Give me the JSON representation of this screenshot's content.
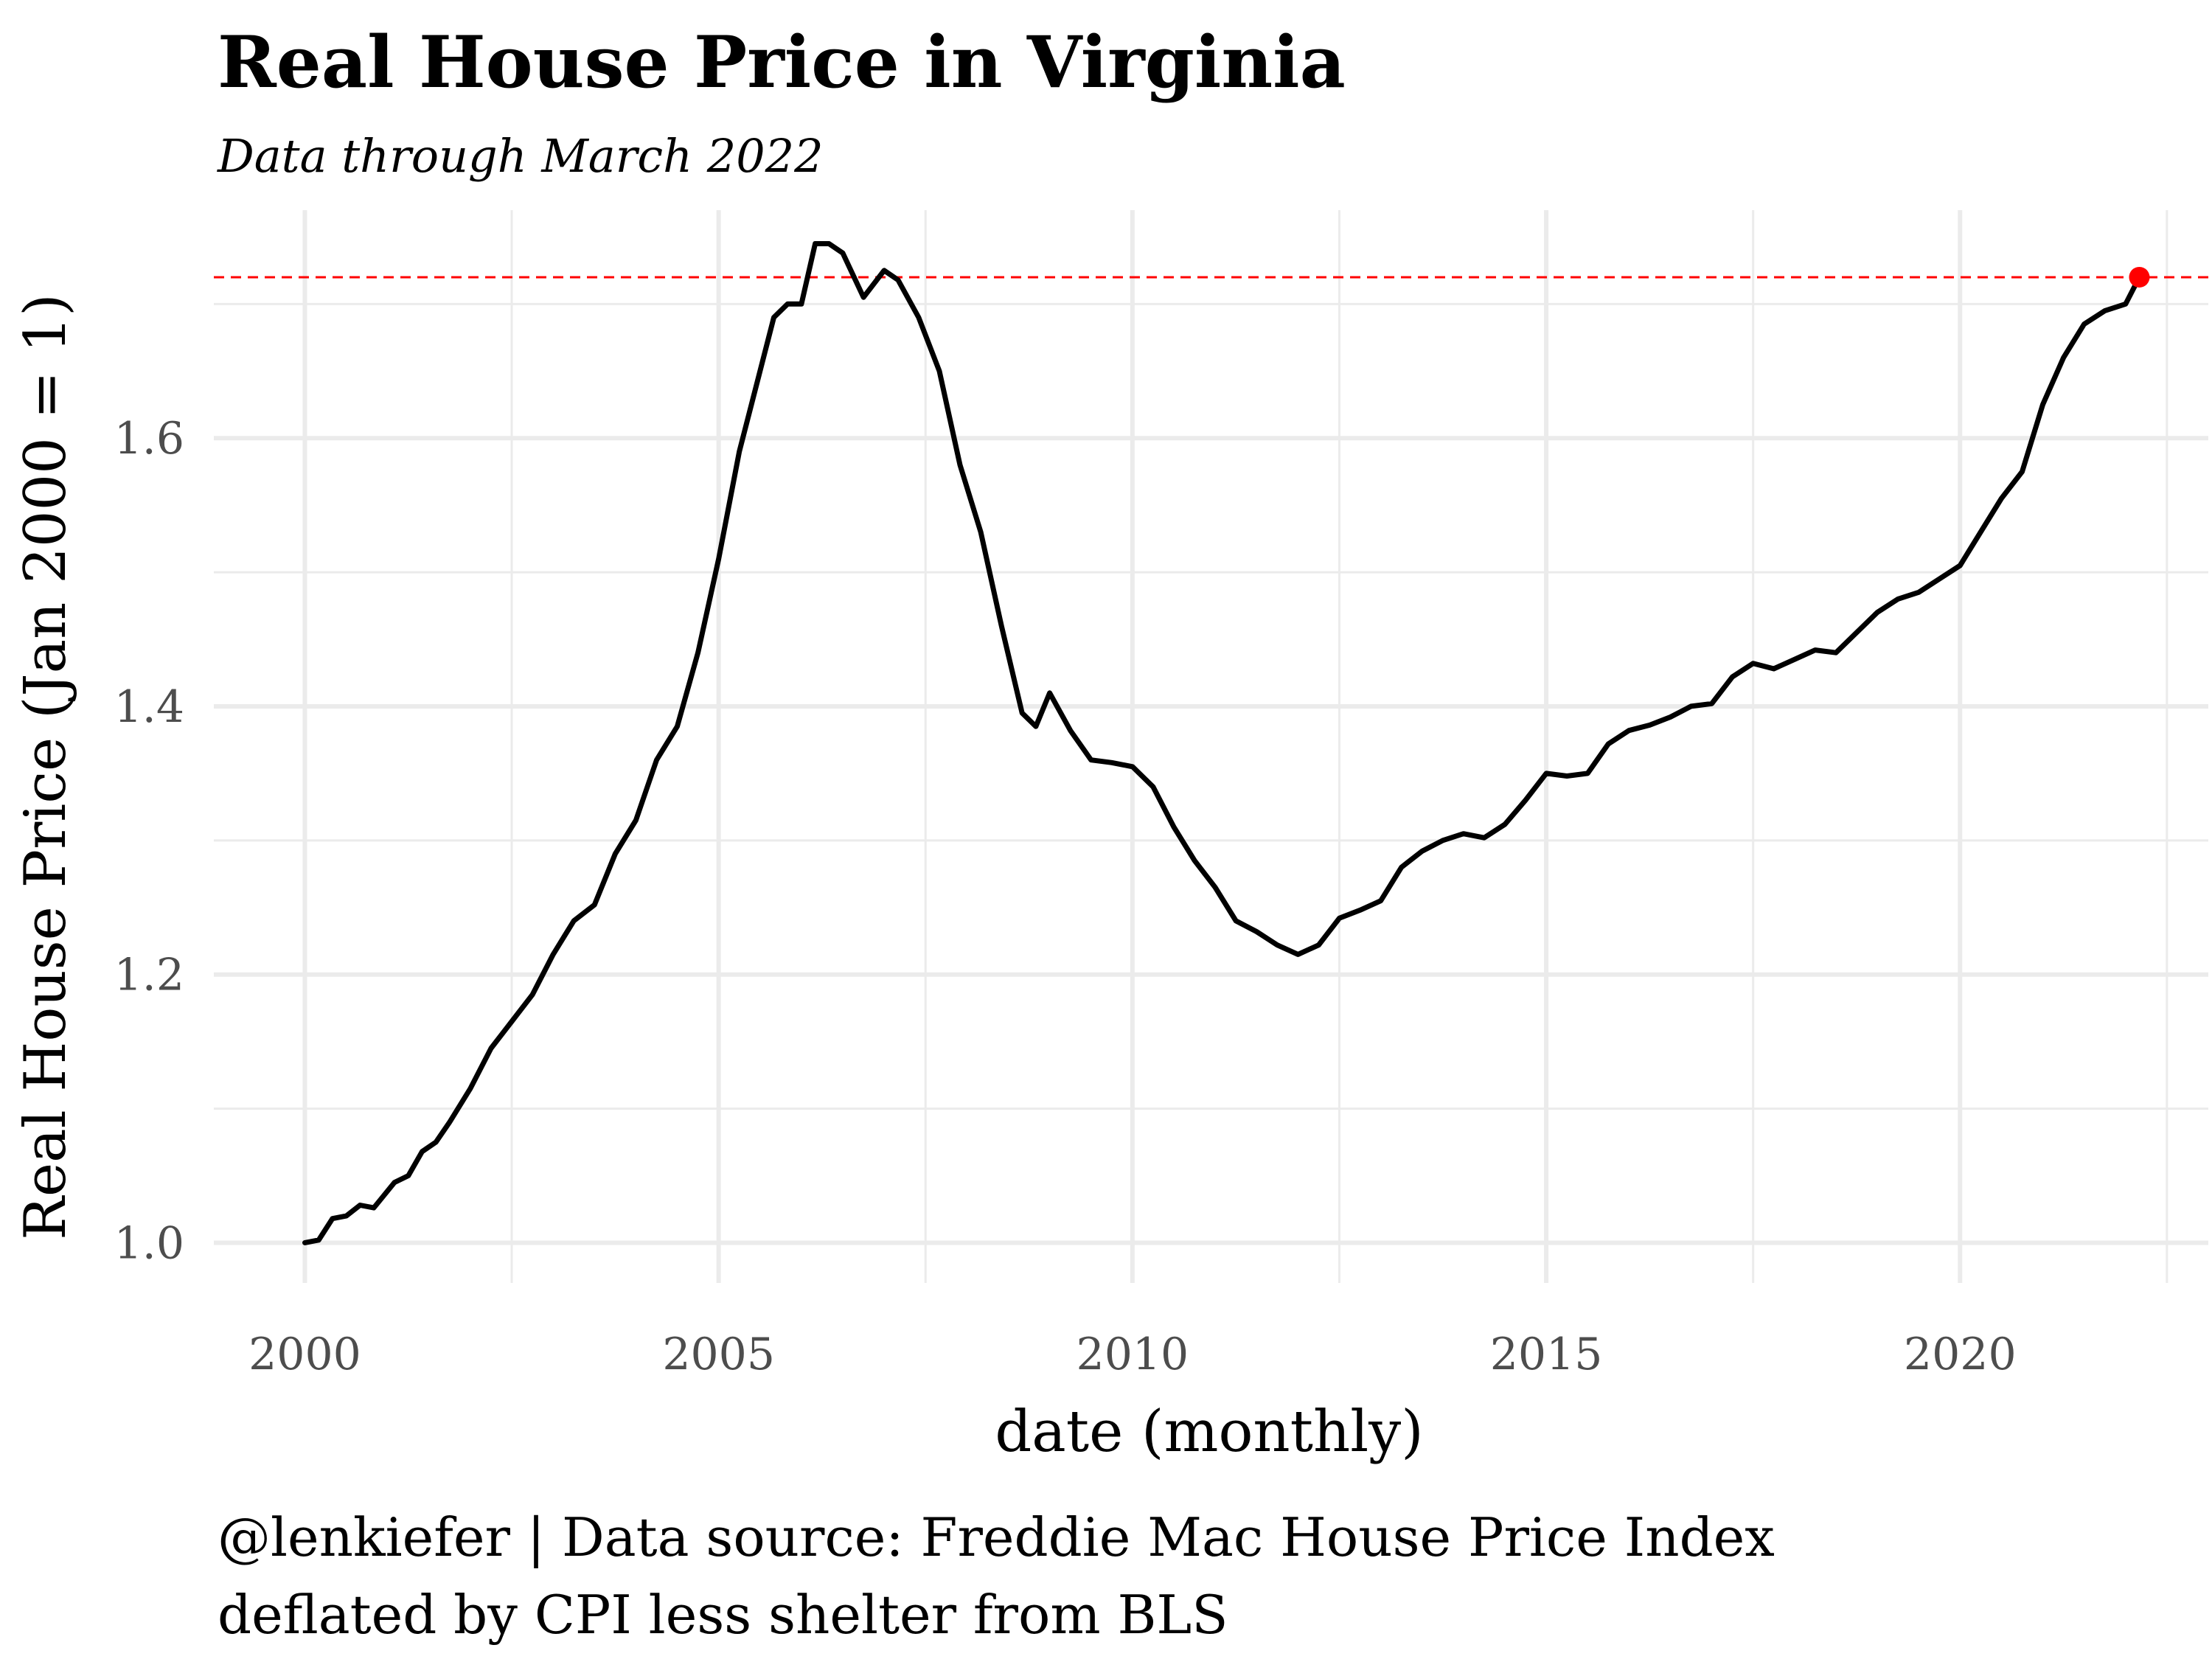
{
  "chart_data": {
    "type": "line",
    "title": "Real House Price in Virginia",
    "subtitle": "Data through March 2022",
    "xlabel": "date (monthly)",
    "ylabel": "Real House Price (Jan 2000 = 1)",
    "caption_lines": [
      "@lenkiefer | Data source: Freddie Mac House Price Index",
      "deflated by CPI less shelter from BLS"
    ],
    "x_ticks": [
      "2000",
      "2005",
      "2010",
      "2015",
      "2020"
    ],
    "y_ticks": [
      "1.0",
      "1.2",
      "1.4",
      "1.6"
    ],
    "xlim": [
      1998.9,
      2023.0
    ],
    "ylim": [
      0.97,
      1.77
    ],
    "grid": true,
    "line_color": "#000000",
    "reference_color": "#ff0000",
    "reference_line_y": 1.72,
    "last_point": {
      "x": "2022-03",
      "y": 1.72
    },
    "series": [
      {
        "points": [
          [
            "2000-01",
            1.0
          ],
          [
            "2000-03",
            1.002
          ],
          [
            "2000-05",
            1.018
          ],
          [
            "2000-07",
            1.02
          ],
          [
            "2000-09",
            1.028
          ],
          [
            "2000-11",
            1.026
          ],
          [
            "2001-02",
            1.045
          ],
          [
            "2001-04",
            1.05
          ],
          [
            "2001-06",
            1.068
          ],
          [
            "2001-08",
            1.075
          ],
          [
            "2001-10",
            1.09
          ],
          [
            "2002-01",
            1.115
          ],
          [
            "2002-04",
            1.145
          ],
          [
            "2002-07",
            1.165
          ],
          [
            "2002-10",
            1.185
          ],
          [
            "2003-01",
            1.215
          ],
          [
            "2003-04",
            1.24
          ],
          [
            "2003-07",
            1.252
          ],
          [
            "2003-10",
            1.29
          ],
          [
            "2004-01",
            1.315
          ],
          [
            "2004-04",
            1.36
          ],
          [
            "2004-07",
            1.385
          ],
          [
            "2004-10",
            1.44
          ],
          [
            "2005-01",
            1.51
          ],
          [
            "2005-04",
            1.59
          ],
          [
            "2005-07",
            1.65
          ],
          [
            "2005-09",
            1.69
          ],
          [
            "2005-11",
            1.7
          ],
          [
            "2006-01",
            1.7
          ],
          [
            "2006-03",
            1.745
          ],
          [
            "2006-05",
            1.745
          ],
          [
            "2006-07",
            1.738
          ],
          [
            "2006-10",
            1.705
          ],
          [
            "2007-01",
            1.725
          ],
          [
            "2007-03",
            1.718
          ],
          [
            "2007-06",
            1.69
          ],
          [
            "2007-09",
            1.65
          ],
          [
            "2007-12",
            1.58
          ],
          [
            "2008-03",
            1.53
          ],
          [
            "2008-06",
            1.46
          ],
          [
            "2008-09",
            1.395
          ],
          [
            "2008-11",
            1.385
          ],
          [
            "2009-01",
            1.41
          ],
          [
            "2009-04",
            1.382
          ],
          [
            "2009-07",
            1.36
          ],
          [
            "2009-10",
            1.358
          ],
          [
            "2010-01",
            1.355
          ],
          [
            "2010-04",
            1.34
          ],
          [
            "2010-07",
            1.31
          ],
          [
            "2010-10",
            1.285
          ],
          [
            "2011-01",
            1.265
          ],
          [
            "2011-04",
            1.24
          ],
          [
            "2011-07",
            1.232
          ],
          [
            "2011-10",
            1.222
          ],
          [
            "2012-01",
            1.215
          ],
          [
            "2012-04",
            1.222
          ],
          [
            "2012-07",
            1.242
          ],
          [
            "2012-10",
            1.248
          ],
          [
            "2013-01",
            1.255
          ],
          [
            "2013-04",
            1.28
          ],
          [
            "2013-07",
            1.292
          ],
          [
            "2013-10",
            1.3
          ],
          [
            "2014-01",
            1.305
          ],
          [
            "2014-04",
            1.302
          ],
          [
            "2014-07",
            1.312
          ],
          [
            "2014-10",
            1.33
          ],
          [
            "2015-01",
            1.35
          ],
          [
            "2015-04",
            1.348
          ],
          [
            "2015-07",
            1.35
          ],
          [
            "2015-10",
            1.372
          ],
          [
            "2016-01",
            1.382
          ],
          [
            "2016-04",
            1.386
          ],
          [
            "2016-07",
            1.392
          ],
          [
            "2016-10",
            1.4
          ],
          [
            "2017-01",
            1.402
          ],
          [
            "2017-04",
            1.422
          ],
          [
            "2017-07",
            1.432
          ],
          [
            "2017-10",
            1.428
          ],
          [
            "2018-01",
            1.435
          ],
          [
            "2018-04",
            1.442
          ],
          [
            "2018-07",
            1.44
          ],
          [
            "2018-10",
            1.455
          ],
          [
            "2019-01",
            1.47
          ],
          [
            "2019-04",
            1.48
          ],
          [
            "2019-07",
            1.485
          ],
          [
            "2019-10",
            1.495
          ],
          [
            "2020-01",
            1.505
          ],
          [
            "2020-04",
            1.53
          ],
          [
            "2020-07",
            1.555
          ],
          [
            "2020-10",
            1.575
          ],
          [
            "2021-01",
            1.625
          ],
          [
            "2021-04",
            1.66
          ],
          [
            "2021-07",
            1.685
          ],
          [
            "2021-10",
            1.695
          ],
          [
            "2022-01",
            1.7
          ],
          [
            "2022-03",
            1.72
          ]
        ]
      }
    ]
  }
}
